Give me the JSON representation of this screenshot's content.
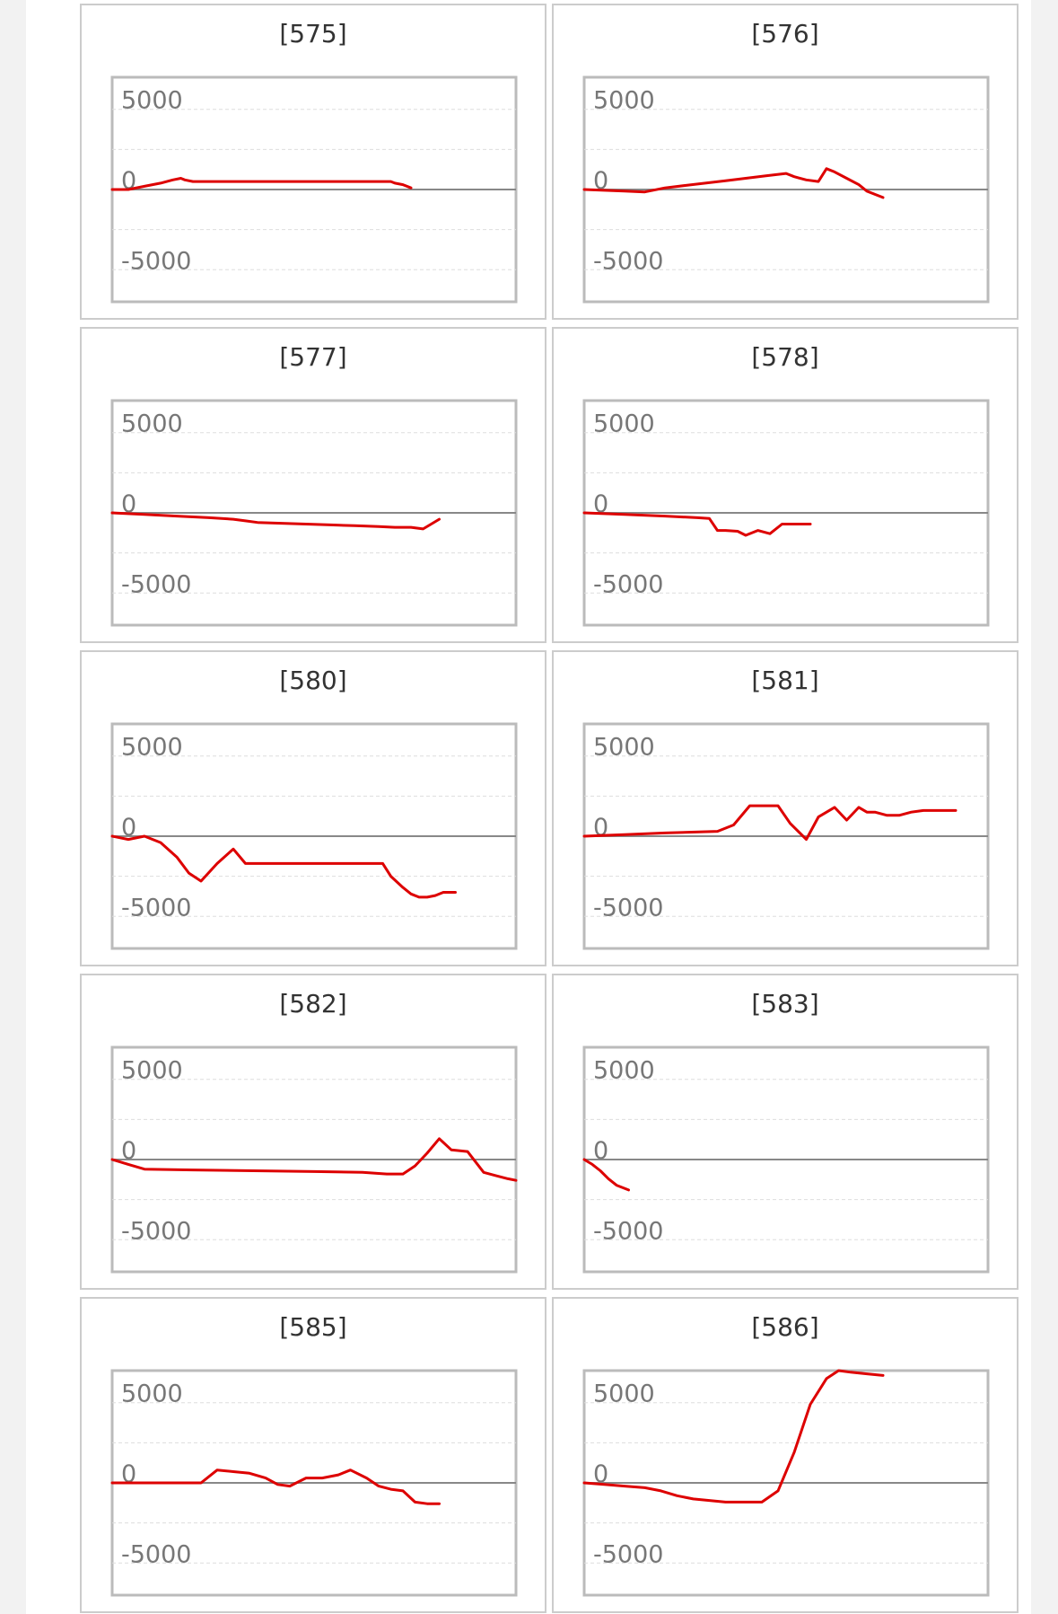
{
  "chart_data": [
    {
      "type": "line",
      "title": "[575]",
      "ylim": [
        -7000,
        7000
      ],
      "yticks": [
        "5000",
        "0",
        "-5000"
      ],
      "grid": true,
      "series": [
        {
          "color": "#dd0000",
          "x": [
            0,
            4,
            8,
            12,
            15,
            17,
            18,
            20,
            24,
            28,
            34,
            40,
            46,
            48,
            50,
            52,
            55,
            60,
            65,
            69,
            70,
            72,
            74
          ],
          "y": [
            0,
            0,
            200,
            400,
            600,
            700,
            600,
            500,
            500,
            500,
            500,
            500,
            500,
            500,
            500,
            500,
            500,
            500,
            500,
            500,
            400,
            300,
            100
          ]
        }
      ]
    },
    {
      "type": "line",
      "title": "[576]",
      "ylim": [
        -7000,
        7000
      ],
      "yticks": [
        "5000",
        "0",
        "-5000"
      ],
      "grid": true,
      "series": [
        {
          "color": "#dd0000",
          "x": [
            0,
            5,
            10,
            15,
            20,
            25,
            30,
            35,
            40,
            45,
            50,
            52,
            55,
            58,
            60,
            62,
            65,
            68,
            70,
            72,
            74
          ],
          "y": [
            0,
            -50,
            -100,
            -150,
            100,
            250,
            400,
            550,
            700,
            850,
            1000,
            800,
            600,
            500,
            1300,
            1100,
            700,
            300,
            -100,
            -300,
            -500
          ]
        }
      ]
    },
    {
      "type": "line",
      "title": "[577]",
      "ylim": [
        -7000,
        7000
      ],
      "yticks": [
        "5000",
        "0",
        "-5000"
      ],
      "grid": true,
      "series": [
        {
          "color": "#dd0000",
          "x": [
            0,
            8,
            16,
            24,
            30,
            33,
            36,
            42,
            48,
            54,
            60,
            66,
            70,
            74,
            77,
            81
          ],
          "y": [
            0,
            -100,
            -200,
            -300,
            -400,
            -500,
            -600,
            -650,
            -700,
            -750,
            -800,
            -850,
            -900,
            -900,
            -1000,
            -400
          ]
        }
      ]
    },
    {
      "type": "line",
      "title": "[578]",
      "ylim": [
        -7000,
        7000
      ],
      "yticks": [
        "5000",
        "0",
        "-5000"
      ],
      "grid": true,
      "series": [
        {
          "color": "#dd0000",
          "x": [
            0,
            10,
            20,
            28,
            31,
            33,
            35,
            38,
            40,
            43,
            46,
            49,
            52,
            56
          ],
          "y": [
            0,
            -100,
            -200,
            -300,
            -350,
            -1100,
            -1100,
            -1150,
            -1400,
            -1100,
            -1300,
            -700,
            -700,
            -700
          ]
        }
      ]
    },
    {
      "type": "line",
      "title": "[580]",
      "ylim": [
        -7000,
        7000
      ],
      "yticks": [
        "5000",
        "0",
        "-5000"
      ],
      "grid": true,
      "series": [
        {
          "color": "#dd0000",
          "x": [
            0,
            4,
            8,
            12,
            16,
            19,
            22,
            26,
            30,
            33,
            38,
            44,
            50,
            56,
            62,
            67,
            69,
            72,
            74,
            76,
            78,
            80,
            82,
            85
          ],
          "y": [
            0,
            -200,
            0,
            -400,
            -1300,
            -2300,
            -2800,
            -1700,
            -800,
            -1700,
            -1700,
            -1700,
            -1700,
            -1700,
            -1700,
            -1700,
            -2500,
            -3200,
            -3600,
            -3800,
            -3800,
            -3700,
            -3500,
            -3500
          ]
        }
      ]
    },
    {
      "type": "line",
      "title": "[581]",
      "ylim": [
        -7000,
        7000
      ],
      "yticks": [
        "5000",
        "0",
        "-5000"
      ],
      "grid": true,
      "series": [
        {
          "color": "#dd0000",
          "x": [
            0,
            10,
            20,
            33,
            37,
            41,
            45,
            48,
            51,
            55,
            58,
            62,
            65,
            68,
            70,
            72,
            75,
            78,
            81,
            84,
            88,
            92
          ],
          "y": [
            0,
            100,
            200,
            300,
            700,
            1900,
            1900,
            1900,
            800,
            -200,
            1200,
            1800,
            1000,
            1800,
            1500,
            1500,
            1300,
            1300,
            1500,
            1600,
            1600,
            1600
          ]
        }
      ]
    },
    {
      "type": "line",
      "title": "[582]",
      "ylim": [
        -7000,
        7000
      ],
      "yticks": [
        "5000",
        "0",
        "-5000"
      ],
      "grid": true,
      "series": [
        {
          "color": "#dd0000",
          "x": [
            0,
            4,
            8,
            20,
            35,
            50,
            62,
            68,
            72,
            75,
            78,
            81,
            84,
            88,
            92,
            95,
            98,
            100
          ],
          "y": [
            0,
            -300,
            -600,
            -650,
            -700,
            -750,
            -800,
            -900,
            -900,
            -400,
            400,
            1300,
            600,
            500,
            -800,
            -1000,
            -1200,
            -1300
          ]
        }
      ]
    },
    {
      "type": "line",
      "title": "[583]",
      "ylim": [
        -7000,
        7000
      ],
      "yticks": [
        "5000",
        "0",
        "-5000"
      ],
      "grid": true,
      "series": [
        {
          "color": "#dd0000",
          "x": [
            0,
            2,
            4,
            6,
            8,
            11
          ],
          "y": [
            0,
            -300,
            -700,
            -1200,
            -1600,
            -1900
          ]
        }
      ]
    },
    {
      "type": "line",
      "title": "[585]",
      "ylim": [
        -7000,
        7000
      ],
      "yticks": [
        "5000",
        "0",
        "-5000"
      ],
      "grid": true,
      "series": [
        {
          "color": "#dd0000",
          "x": [
            0,
            8,
            16,
            22,
            26,
            30,
            34,
            38,
            41,
            44,
            48,
            52,
            56,
            59,
            63,
            66,
            69,
            72,
            75,
            78,
            81
          ],
          "y": [
            0,
            0,
            0,
            0,
            800,
            700,
            600,
            300,
            -100,
            -200,
            300,
            300,
            500,
            800,
            300,
            -200,
            -400,
            -500,
            -1200,
            -1300,
            -1300
          ]
        }
      ]
    },
    {
      "type": "line",
      "title": "[586]",
      "ylim": [
        -7000,
        7000
      ],
      "yticks": [
        "5000",
        "0",
        "-5000"
      ],
      "grid": true,
      "series": [
        {
          "color": "#dd0000",
          "x": [
            0,
            5,
            10,
            15,
            19,
            23,
            27,
            31,
            35,
            39,
            44,
            48,
            52,
            56,
            60,
            63,
            66,
            70,
            74
          ],
          "y": [
            0,
            -100,
            -200,
            -300,
            -500,
            -800,
            -1000,
            -1100,
            -1200,
            -1200,
            -1200,
            -500,
            1900,
            4900,
            6500,
            7000,
            6900,
            6800,
            6700
          ]
        }
      ]
    }
  ]
}
